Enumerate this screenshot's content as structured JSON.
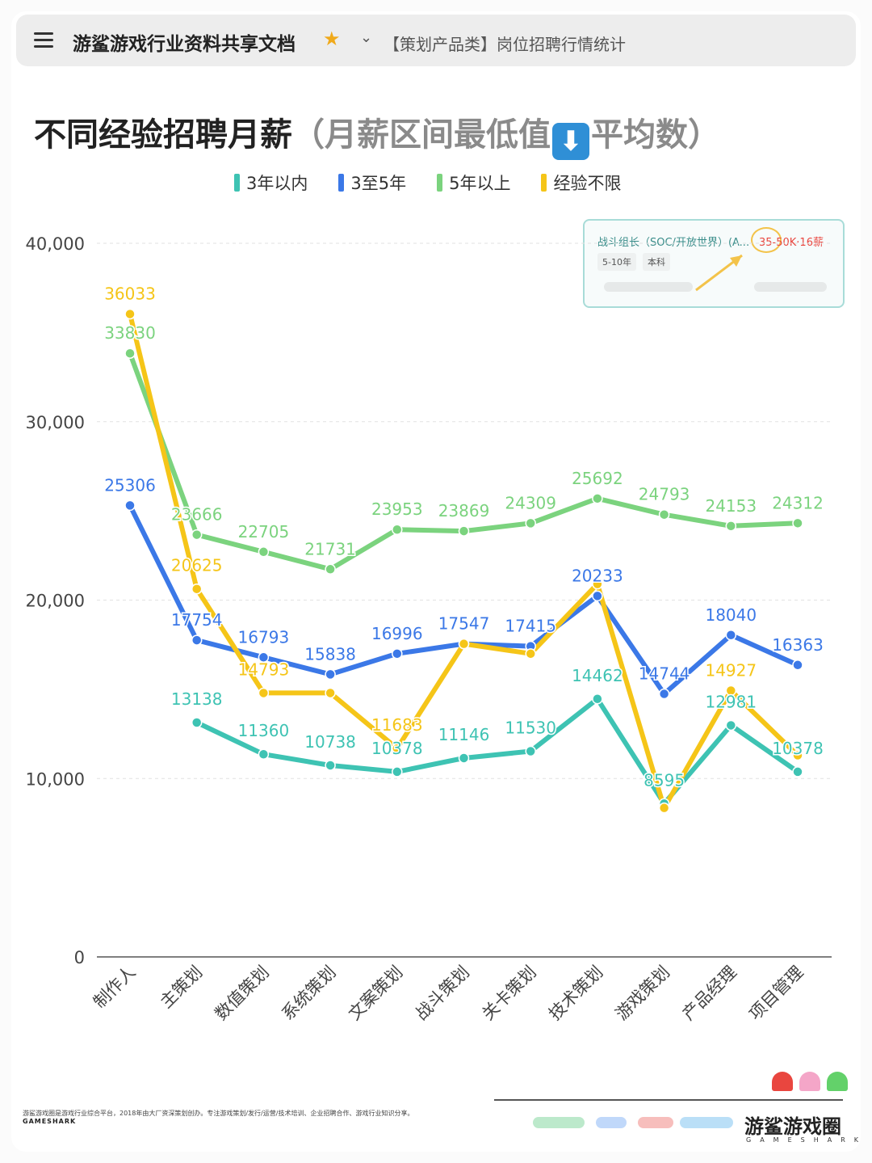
{
  "topbar": {
    "menu_icon": "menu-icon",
    "title": "游鲨游戏行业资料共享文档",
    "star_icon": "star-icon",
    "chevron_icon": "chevron-down-icon",
    "breadcrumb": "【策划产品类】岗位招聘行情统计"
  },
  "heading": {
    "title": "不同经验招聘月薪",
    "subtitle_open": "（月薪区间最低值",
    "down_icon": "⬇",
    "subtitle_close": "平均数）"
  },
  "job_card": {
    "title": "战斗组长（SOC/开放世界）(A...",
    "salary": "35-50K·16薪",
    "tags": [
      "5-10年",
      "本科"
    ]
  },
  "chart_data": {
    "type": "line",
    "categories": [
      "制作人",
      "主策划",
      "数值策划",
      "系统策划",
      "文案策划",
      "战斗策划",
      "关卡策划",
      "技术策划",
      "游戏策划",
      "产品经理",
      "项目管理"
    ],
    "ylim": [
      0,
      40000
    ],
    "yticks": [
      0,
      10000,
      20000,
      30000,
      40000
    ],
    "ytick_labels": [
      "0",
      "10,000",
      "20,000",
      "30,000",
      "40,000"
    ],
    "grid": true,
    "legend_position": "top",
    "series": [
      {
        "name": "3年以内",
        "color": "#3ec3b3",
        "values": [
          null,
          13138,
          11360,
          10738,
          10378,
          11146,
          11530,
          14462,
          8595,
          12981,
          10378
        ],
        "labels": [
          "",
          "13138",
          "11360",
          "10738",
          "10378",
          "11146",
          "11530",
          "14462",
          "8595",
          "12981",
          "10378"
        ]
      },
      {
        "name": "3至5年",
        "color": "#3b78e7",
        "values": [
          25306,
          17754,
          16793,
          15838,
          16996,
          17547,
          17415,
          20233,
          14744,
          18040,
          16363
        ],
        "labels": [
          "25306",
          "17754",
          "16793",
          "15838",
          "16996",
          "17547",
          "17415",
          "20233",
          "14744",
          "18040",
          "16363"
        ]
      },
      {
        "name": "5年以上",
        "color": "#7bd37e",
        "values": [
          33830,
          23666,
          22705,
          21731,
          23953,
          23869,
          24309,
          25692,
          24793,
          24153,
          24312
        ],
        "labels": [
          "33830",
          "23666",
          "22705",
          "21731",
          "23953",
          "23869",
          "24309",
          "25692",
          "24793",
          "24153",
          "24312"
        ]
      },
      {
        "name": "经验不限",
        "color": "#f5c518",
        "values": [
          36033,
          20625,
          14793,
          14793,
          11683,
          17547,
          16996,
          20900,
          8350,
          14927,
          11300
        ],
        "labels": [
          "36033",
          "20625",
          "14793",
          "",
          "11683",
          "",
          "",
          "",
          "",
          "14927",
          ""
        ]
      }
    ]
  },
  "footer": {
    "description": "游鲨游戏圈是游戏行业综合平台，2018年由大厂资深策划创办。专注游戏策划/发行/运营/技术培训、企业招聘合作、游戏行业知识分享。",
    "brand_small": "GAMESHARK",
    "brand_name": "游鲨游戏圈",
    "brand_sub": "GAMESHARK"
  }
}
